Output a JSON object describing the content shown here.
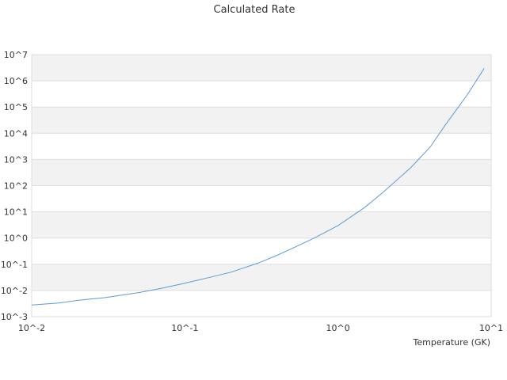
{
  "chart_data": {
    "type": "line",
    "title": "Calculated Rate",
    "xlabel": "Temperature (GK)",
    "ylabel": "",
    "x_scale": "log",
    "y_scale": "log",
    "xlim": [
      0.01,
      10
    ],
    "ylim": [
      0.001,
      10000000
    ],
    "x_ticks": [
      "10^-2",
      "10^-1",
      "10^0",
      "10^1"
    ],
    "y_ticks": [
      "10^-3",
      "10^-2",
      "10^-1",
      "10^0",
      "10^1",
      "10^2",
      "10^3",
      "10^4",
      "10^5",
      "10^6",
      "10^7"
    ],
    "grid": "horizontal alternating bands",
    "legend": "none",
    "colors": {
      "line": "#5b9bd5",
      "band": "#f2f2f2",
      "grid": "#dddddd"
    },
    "series": [
      {
        "x": [
          0.01,
          0.015,
          0.02,
          0.03,
          0.04,
          0.05,
          0.07,
          0.1,
          0.15,
          0.2,
          0.3,
          0.4,
          0.5,
          0.7,
          1.0,
          1.5,
          2.0,
          3.0,
          4.0,
          5.0,
          7.0,
          9.0
        ],
        "y": [
          0.0028,
          0.0033,
          0.0042,
          0.0053,
          0.0068,
          0.0083,
          0.012,
          0.019,
          0.033,
          0.05,
          0.11,
          0.22,
          0.4,
          1.0,
          3.0,
          15,
          60,
          500,
          3000,
          20000,
          300000,
          3000000
        ]
      }
    ]
  }
}
